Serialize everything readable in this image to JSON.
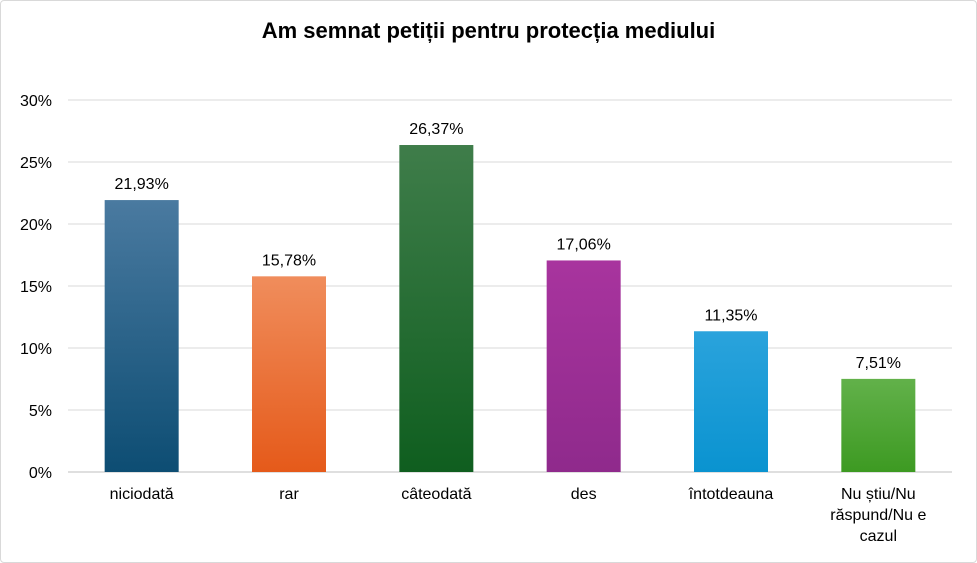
{
  "chart_data": {
    "type": "bar",
    "title": "Am semnat petiții pentru protecția mediului",
    "xlabel": "",
    "ylabel": "",
    "ylim": [
      0,
      30
    ],
    "yticks": [
      "0%",
      "5%",
      "10%",
      "15%",
      "20%",
      "25%",
      "30%"
    ],
    "ytick_values": [
      0,
      5,
      10,
      15,
      20,
      25,
      30
    ],
    "grid": true,
    "legend": "none",
    "categories": [
      [
        "niciodată"
      ],
      [
        "rar"
      ],
      [
        "câteodată"
      ],
      [
        "des"
      ],
      [
        "întotdeauna"
      ],
      [
        "Nu știu/Nu",
        "răspund/Nu e",
        "cazul"
      ]
    ],
    "values": [
      21.93,
      15.78,
      26.37,
      17.06,
      11.35,
      7.51
    ],
    "data_labels": [
      "21,93%",
      "15,78%",
      "26,37%",
      "17,06%",
      "11,35%",
      "7,51%"
    ],
    "colors": [
      [
        "#4a7aa0",
        "#0d4d73"
      ],
      [
        "#f08d5c",
        "#e55a1a"
      ],
      [
        "#3f7d4a",
        "#0f5e1f"
      ],
      [
        "#a8349e",
        "#8f2a8c"
      ],
      [
        "#2aa3dc",
        "#0a93d0"
      ],
      [
        "#62b14a",
        "#3d9a22"
      ]
    ]
  }
}
